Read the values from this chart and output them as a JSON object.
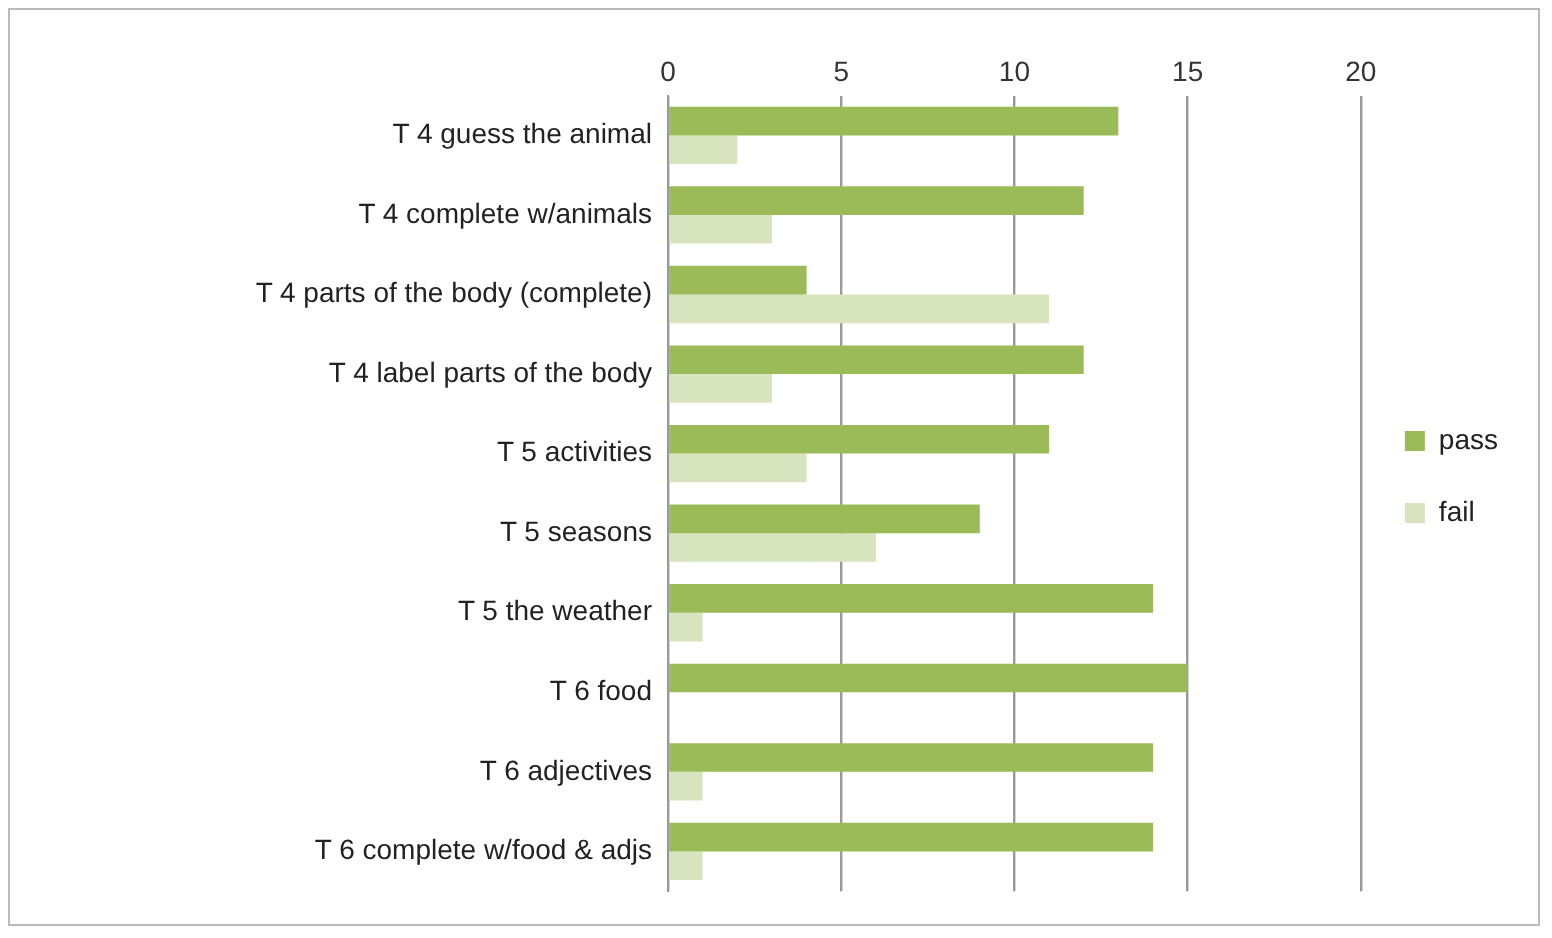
{
  "chart_data": {
    "type": "bar",
    "orientation": "horizontal",
    "categories": [
      "T 4 guess the animal",
      "T 4 complete w/animals",
      "T 4 parts of the body (complete)",
      "T 4 label parts of the body",
      "T 5 activities",
      "T 5 seasons",
      "T 5 the weather",
      "T 6 food",
      "T 6 adjectives",
      "T 6 complete w/food & adjs"
    ],
    "series": [
      {
        "name": "pass",
        "color": "#9bbb59",
        "values": [
          13,
          12,
          4,
          12,
          11,
          9,
          14,
          15,
          14,
          14
        ]
      },
      {
        "name": "fail",
        "color": "#d7e4bd",
        "values": [
          2,
          3,
          11,
          3,
          4,
          6,
          1,
          0,
          1,
          1
        ]
      }
    ],
    "xlim": [
      0,
      20
    ],
    "xticks": [
      0,
      5,
      10,
      15,
      20
    ],
    "grid": "x",
    "legend": "right"
  }
}
